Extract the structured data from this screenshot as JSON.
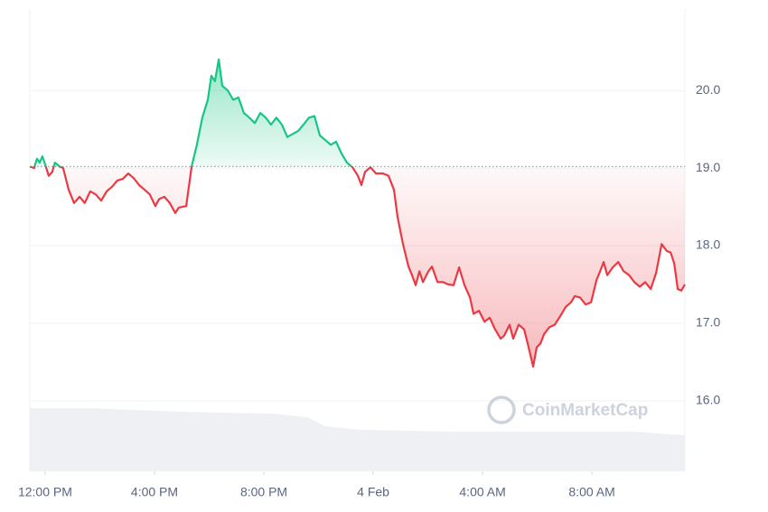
{
  "chart_data": {
    "type": "line",
    "watermark": "CoinMarketCap",
    "x": [
      -0.56,
      -0.4,
      -0.3,
      -0.2,
      -0.1,
      0,
      0.13,
      0.26,
      0.36,
      0.53,
      0.66,
      0.86,
      1.06,
      1.26,
      1.45,
      1.65,
      1.85,
      2.05,
      2.25,
      2.45,
      2.64,
      2.84,
      3.04,
      3.24,
      3.44,
      3.64,
      3.83,
      4.03,
      4.17,
      4.36,
      4.56,
      4.76,
      4.89,
      5.16,
      5.36,
      5.55,
      5.75,
      5.95,
      6.08,
      6.21,
      6.35,
      6.48,
      6.68,
      6.88,
      7.07,
      7.27,
      7.47,
      7.67,
      7.87,
      8.07,
      8.26,
      8.46,
      8.66,
      8.86,
      9.06,
      9.26,
      9.45,
      9.65,
      9.85,
      10.05,
      10.25,
      10.45,
      10.64,
      10.84,
      11.04,
      11.24,
      11.44,
      11.57,
      11.7,
      11.9,
      12.1,
      12.36,
      12.56,
      12.76,
      12.89,
      13.09,
      13.29,
      13.42,
      13.55,
      13.69,
      13.82,
      14.02,
      14.15,
      14.35,
      14.55,
      14.74,
      14.94,
      15.14,
      15.34,
      15.54,
      15.67,
      15.87,
      16.07,
      16.26,
      16.46,
      16.66,
      16.79,
      16.99,
      17.12,
      17.32,
      17.52,
      17.65,
      17.85,
      17.98,
      18.12,
      18.25,
      18.45,
      18.64,
      18.84,
      19.04,
      19.24,
      19.37,
      19.57,
      19.77,
      19.97,
      20.17,
      20.3,
      20.43,
      20.56,
      20.76,
      20.96,
      21.16,
      21.36,
      21.55,
      21.75,
      21.95,
      22.15,
      22.35,
      22.55,
      22.74,
      22.88,
      23.01,
      23.14,
      23.27,
      23.4
    ],
    "values": [
      19.02,
      19.0,
      19.12,
      19.07,
      19.15,
      19.05,
      18.9,
      18.95,
      19.07,
      19.02,
      19.0,
      18.72,
      18.55,
      18.63,
      18.55,
      18.7,
      18.66,
      18.58,
      18.7,
      18.76,
      18.84,
      18.86,
      18.93,
      18.87,
      18.78,
      18.72,
      18.66,
      18.51,
      18.6,
      18.63,
      18.55,
      18.42,
      18.49,
      18.51,
      19.02,
      19.3,
      19.65,
      19.88,
      20.19,
      20.12,
      20.4,
      20.06,
      20.0,
      19.88,
      19.91,
      19.71,
      19.65,
      19.58,
      19.71,
      19.65,
      19.56,
      19.65,
      19.56,
      19.4,
      19.44,
      19.48,
      19.56,
      19.65,
      19.67,
      19.42,
      19.36,
      19.3,
      19.34,
      19.19,
      19.07,
      19.01,
      18.9,
      18.78,
      18.95,
      19.01,
      18.93,
      18.93,
      18.9,
      18.72,
      18.37,
      18.02,
      17.73,
      17.62,
      17.49,
      17.67,
      17.53,
      17.67,
      17.73,
      17.53,
      17.53,
      17.5,
      17.49,
      17.72,
      17.49,
      17.33,
      17.12,
      17.16,
      17.02,
      17.07,
      16.92,
      16.8,
      16.84,
      16.98,
      16.8,
      16.98,
      16.92,
      16.74,
      16.44,
      16.69,
      16.74,
      16.86,
      16.95,
      16.98,
      17.09,
      17.21,
      17.27,
      17.35,
      17.33,
      17.24,
      17.27,
      17.56,
      17.67,
      17.79,
      17.62,
      17.72,
      17.79,
      17.67,
      17.62,
      17.53,
      17.47,
      17.53,
      17.44,
      17.65,
      18.02,
      17.93,
      17.91,
      17.77,
      17.44,
      17.42,
      17.5
    ],
    "baseline": 19.02,
    "up_color": "#16c784",
    "down_color": "#ea3943",
    "xlim": [
      -0.56,
      23.4
    ],
    "ylim": [
      15.09,
      21.05
    ],
    "xticks": [
      {
        "value": 0,
        "label": "12:00 PM"
      },
      {
        "value": 4,
        "label": "4:00 PM"
      },
      {
        "value": 8,
        "label": "8:00 PM"
      },
      {
        "value": 12,
        "label": "4 Feb"
      },
      {
        "value": 16,
        "label": "4:00 AM"
      },
      {
        "value": 20,
        "label": "8:00 AM"
      }
    ],
    "yticks": [
      {
        "value": 16,
        "label": "16.0"
      },
      {
        "value": 17,
        "label": "17.0"
      },
      {
        "value": 18,
        "label": "18.0"
      },
      {
        "value": 19,
        "label": "19.0"
      },
      {
        "value": 20,
        "label": "20.0"
      }
    ],
    "grid": true
  }
}
